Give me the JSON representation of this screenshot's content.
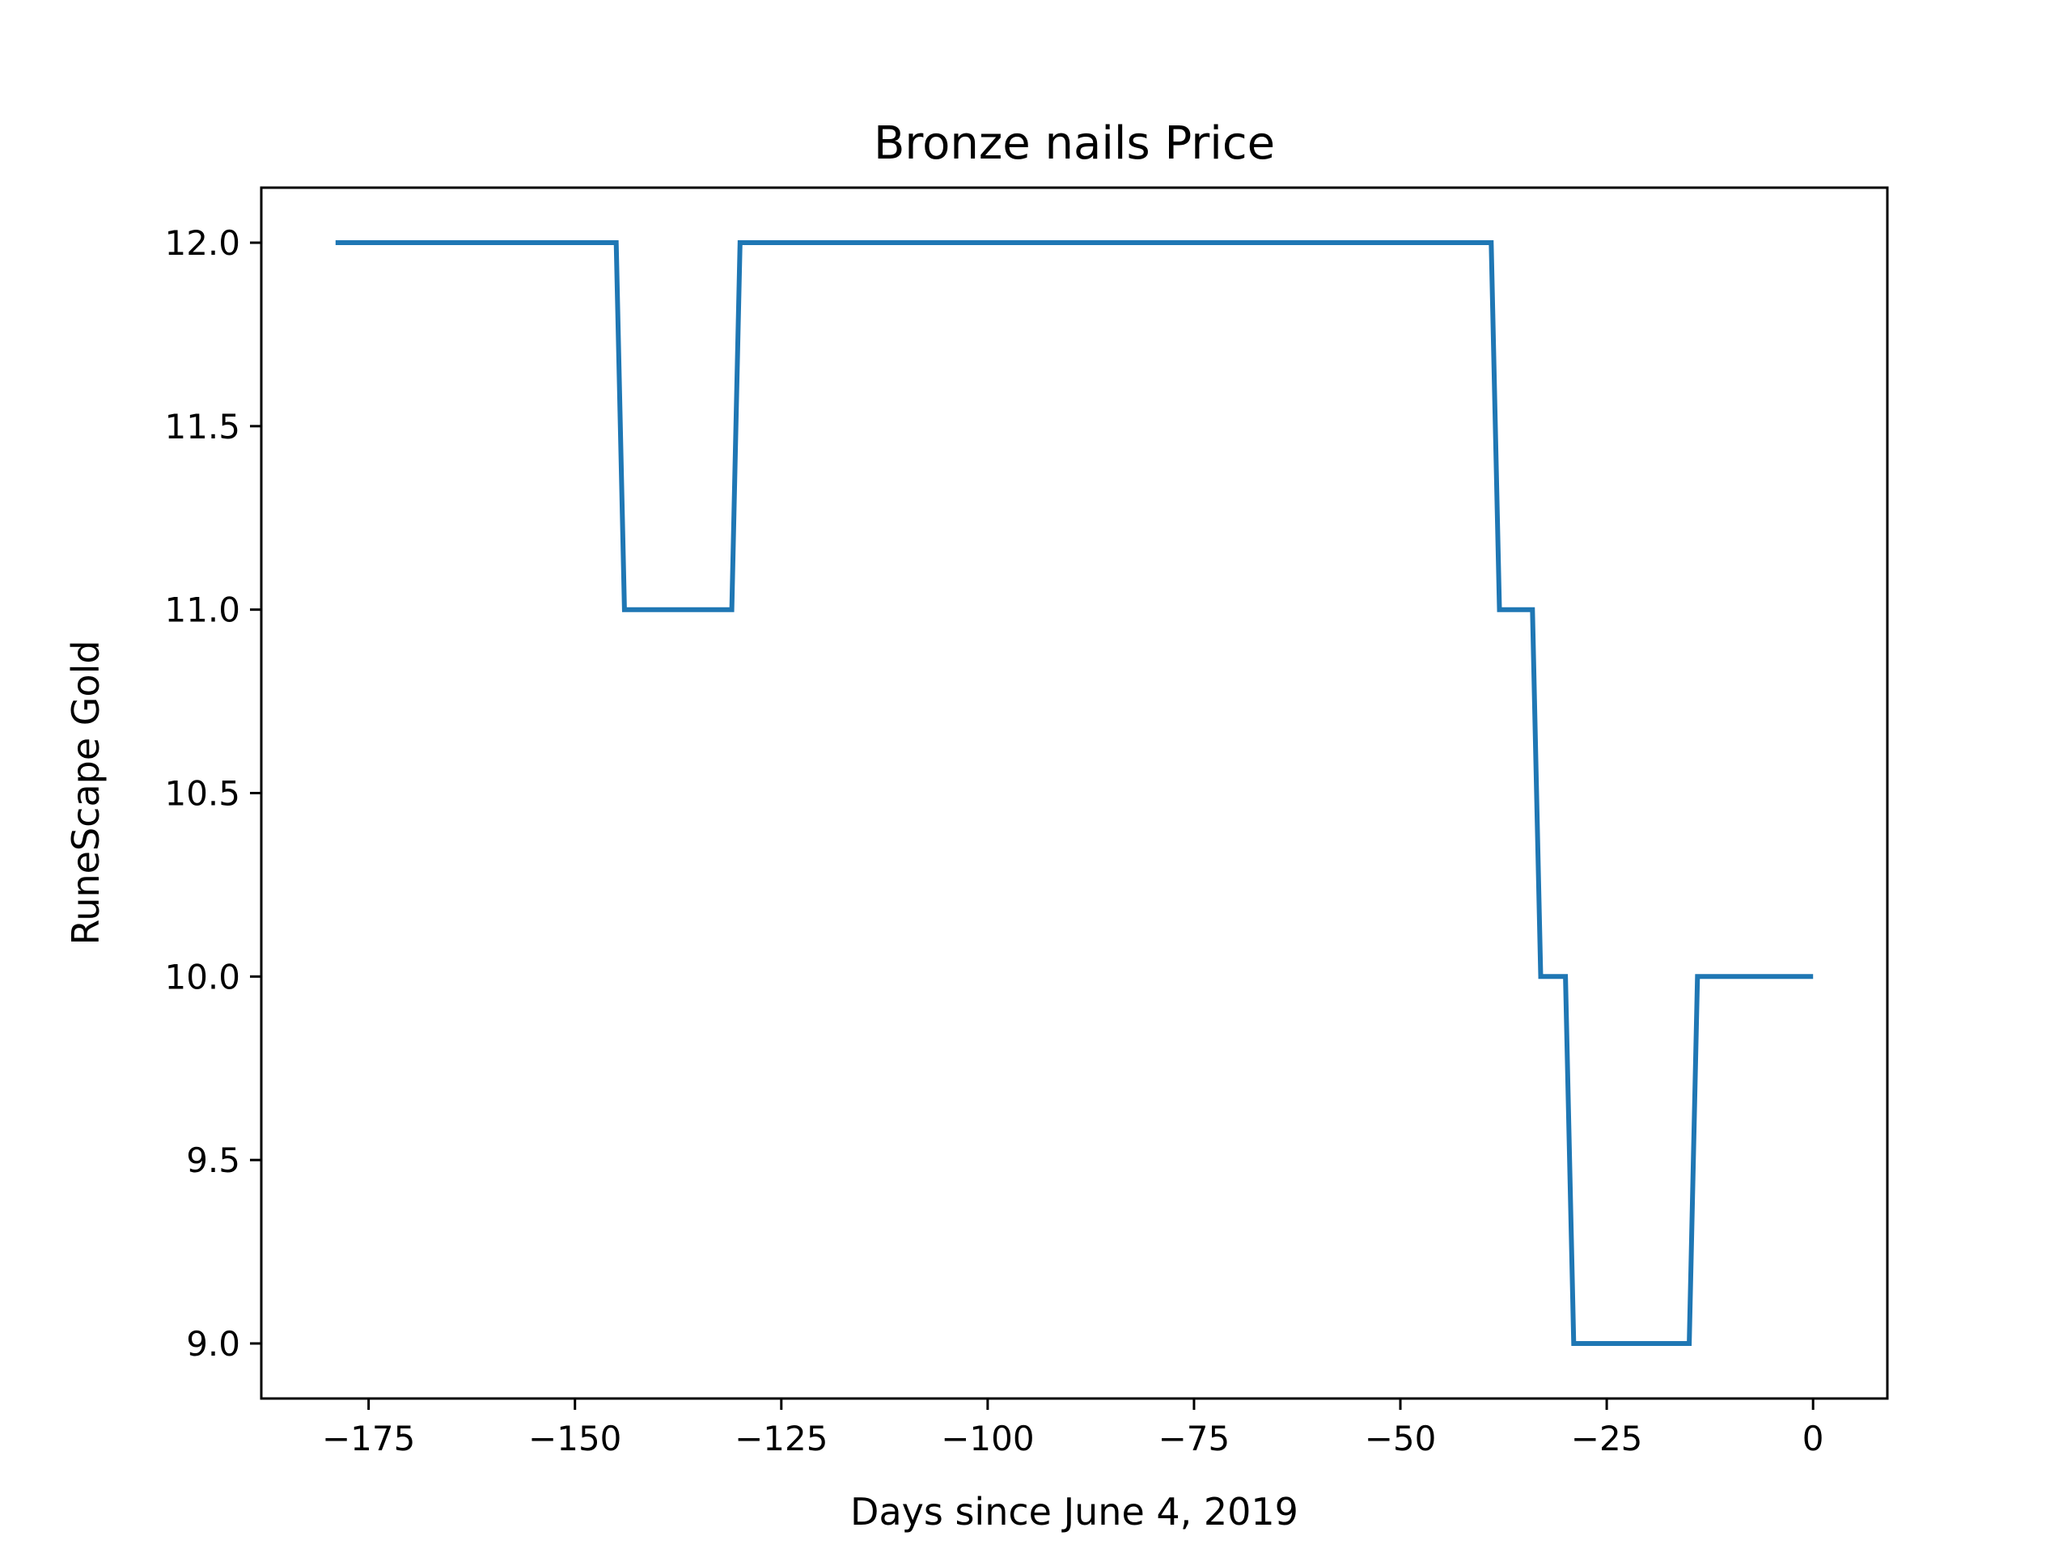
{
  "chart_data": {
    "type": "line",
    "title": "Bronze nails Price",
    "xlabel": "Days since June 4, 2019",
    "ylabel": "RuneScape Gold",
    "xlim": [
      -188,
      9
    ],
    "ylim": [
      8.85,
      12.15
    ],
    "xticks": [
      -175,
      -150,
      -125,
      -100,
      -75,
      -50,
      -25,
      0
    ],
    "yticks": [
      9.0,
      9.5,
      10.0,
      10.5,
      11.0,
      11.5,
      12.0
    ],
    "grid": false,
    "series": [
      {
        "color": "#1f77b4",
        "x": [
          -179,
          -145,
          -144,
          -131,
          -130,
          -39,
          -38,
          -34,
          -33,
          -30,
          -29,
          -15,
          -14,
          0
        ],
        "y": [
          12,
          12,
          11,
          11,
          12,
          12,
          11,
          11,
          10,
          10,
          9,
          9,
          10,
          10
        ]
      }
    ]
  }
}
